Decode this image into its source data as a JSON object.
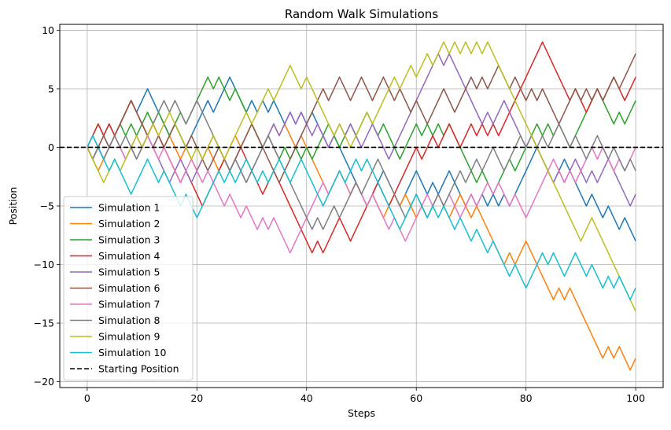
{
  "chart_data": {
    "type": "line",
    "title": "Random Walk Simulations",
    "xlabel": "Steps",
    "ylabel": "Position",
    "xlim": [
      -5,
      105
    ],
    "ylim": [
      -20.5,
      10.5
    ],
    "xticks": [
      0,
      20,
      40,
      60,
      80,
      100
    ],
    "yticks": [
      -20,
      -15,
      -10,
      -5,
      0,
      5,
      10
    ],
    "xtick_labels": [
      "0",
      "20",
      "40",
      "60",
      "80",
      "100"
    ],
    "ytick_labels": [
      "−20",
      "−15",
      "−10",
      "−5",
      "0",
      "5",
      "10"
    ],
    "grid": true,
    "legend_position": "lower-left",
    "reference_line": {
      "name": "Starting Position",
      "y": 0,
      "color": "#000000",
      "style": "dashed"
    },
    "series": [
      {
        "name": "Simulation 1",
        "color": "#1f77b4",
        "values": [
          0,
          1,
          0,
          -1,
          0,
          1,
          2,
          3,
          4,
          3,
          4,
          5,
          4,
          3,
          2,
          1,
          2,
          1,
          0,
          1,
          2,
          3,
          4,
          3,
          4,
          5,
          6,
          5,
          4,
          3,
          4,
          3,
          4,
          3,
          4,
          3,
          2,
          3,
          2,
          3,
          2,
          3,
          2,
          1,
          0,
          1,
          0,
          -1,
          -2,
          -3,
          -4,
          -5,
          -4,
          -3,
          -2,
          -3,
          -4,
          -5,
          -4,
          -3,
          -2,
          -3,
          -4,
          -3,
          -4,
          -3,
          -2,
          -3,
          -4,
          -5,
          -4,
          -5,
          -4,
          -5,
          -4,
          -5,
          -4,
          -5,
          -4,
          -3,
          -2,
          -1,
          0,
          -1,
          -2,
          -3,
          -2,
          -1,
          -2,
          -3,
          -4,
          -5,
          -4,
          -5,
          -6,
          -5,
          -6,
          -7,
          -6,
          -7,
          -8
        ]
      },
      {
        "name": "Simulation 2",
        "color": "#ff7f0e",
        "values": [
          0,
          -1,
          -2,
          -1,
          0,
          1,
          2,
          3,
          4,
          3,
          2,
          1,
          2,
          1,
          0,
          1,
          0,
          -1,
          0,
          -1,
          -2,
          -1,
          0,
          -1,
          -2,
          -1,
          0,
          1,
          0,
          1,
          2,
          1,
          0,
          1,
          2,
          1,
          2,
          1,
          0,
          1,
          0,
          -1,
          -2,
          -3,
          -4,
          -3,
          -2,
          -3,
          -4,
          -3,
          -4,
          -5,
          -4,
          -5,
          -6,
          -5,
          -4,
          -5,
          -4,
          -5,
          -6,
          -5,
          -6,
          -5,
          -4,
          -5,
          -6,
          -5,
          -4,
          -5,
          -6,
          -5,
          -6,
          -7,
          -8,
          -9,
          -10,
          -9,
          -10,
          -9,
          -8,
          -9,
          -10,
          -11,
          -12,
          -13,
          -12,
          -13,
          -12,
          -13,
          -14,
          -15,
          -16,
          -17,
          -18,
          -17,
          -18,
          -17,
          -18,
          -19,
          -18
        ]
      },
      {
        "name": "Simulation 3",
        "color": "#2ca02c",
        "values": [
          0,
          1,
          2,
          1,
          2,
          1,
          2,
          1,
          2,
          1,
          2,
          3,
          2,
          3,
          2,
          1,
          2,
          3,
          2,
          3,
          4,
          5,
          6,
          5,
          6,
          5,
          4,
          5,
          4,
          3,
          2,
          1,
          0,
          1,
          0,
          -1,
          0,
          -1,
          0,
          -1,
          0,
          -1,
          0,
          1,
          2,
          1,
          0,
          1,
          2,
          1,
          2,
          3,
          2,
          1,
          2,
          1,
          0,
          -1,
          0,
          1,
          2,
          1,
          2,
          1,
          2,
          1,
          2,
          1,
          0,
          -1,
          -2,
          -3,
          -2,
          -3,
          -4,
          -3,
          -2,
          -1,
          -2,
          -1,
          0,
          1,
          2,
          1,
          2,
          1,
          2,
          1,
          0,
          1,
          2,
          3,
          4,
          5,
          4,
          3,
          2,
          3,
          2,
          3,
          4
        ]
      },
      {
        "name": "Simulation 4",
        "color": "#d62728",
        "values": [
          0,
          1,
          2,
          1,
          2,
          1,
          2,
          3,
          4,
          3,
          2,
          1,
          2,
          1,
          0,
          -1,
          -2,
          -3,
          -2,
          -3,
          -4,
          -5,
          -4,
          -3,
          -2,
          -1,
          -2,
          -1,
          0,
          -1,
          -2,
          -3,
          -4,
          -3,
          -2,
          -3,
          -4,
          -5,
          -6,
          -7,
          -8,
          -9,
          -8,
          -9,
          -8,
          -7,
          -6,
          -7,
          -8,
          -7,
          -6,
          -5,
          -4,
          -3,
          -4,
          -5,
          -4,
          -3,
          -2,
          -1,
          0,
          -1,
          0,
          1,
          0,
          1,
          2,
          1,
          0,
          1,
          2,
          1,
          2,
          1,
          2,
          1,
          2,
          3,
          4,
          5,
          6,
          7,
          8,
          9,
          8,
          7,
          6,
          5,
          4,
          5,
          4,
          3,
          4,
          5,
          4,
          5,
          6,
          5,
          4,
          5,
          6
        ]
      },
      {
        "name": "Simulation 5",
        "color": "#9467bd",
        "values": [
          0,
          -1,
          0,
          1,
          0,
          1,
          0,
          -1,
          0,
          -1,
          0,
          1,
          0,
          -1,
          -2,
          -3,
          -2,
          -1,
          -2,
          -3,
          -2,
          -1,
          0,
          1,
          0,
          -1,
          -2,
          -1,
          -2,
          -3,
          -2,
          -1,
          0,
          1,
          2,
          1,
          2,
          3,
          2,
          3,
          2,
          1,
          2,
          1,
          0,
          1,
          2,
          1,
          2,
          1,
          0,
          1,
          2,
          1,
          0,
          -1,
          0,
          1,
          2,
          3,
          4,
          5,
          6,
          7,
          8,
          7,
          8,
          7,
          6,
          5,
          4,
          3,
          2,
          3,
          2,
          3,
          4,
          3,
          2,
          1,
          0,
          1,
          0,
          -1,
          -2,
          -3,
          -2,
          -3,
          -2,
          -1,
          -2,
          -3,
          -2,
          -3,
          -2,
          -1,
          -2,
          -3,
          -4,
          -5,
          -4
        ]
      },
      {
        "name": "Simulation 6",
        "color": "#8c564b",
        "values": [
          0,
          -1,
          0,
          1,
          0,
          1,
          2,
          3,
          4,
          3,
          2,
          1,
          0,
          1,
          0,
          1,
          2,
          1,
          0,
          1,
          0,
          -1,
          -2,
          -1,
          0,
          -1,
          -2,
          -1,
          0,
          1,
          2,
          1,
          0,
          -1,
          -2,
          -3,
          -2,
          -1,
          0,
          1,
          2,
          3,
          4,
          5,
          4,
          5,
          6,
          5,
          4,
          5,
          6,
          5,
          4,
          5,
          6,
          5,
          4,
          5,
          4,
          3,
          4,
          3,
          2,
          3,
          4,
          5,
          4,
          3,
          4,
          5,
          6,
          5,
          6,
          5,
          6,
          7,
          6,
          5,
          6,
          5,
          4,
          5,
          4,
          5,
          4,
          3,
          2,
          3,
          4,
          5,
          4,
          5,
          4,
          5,
          4,
          5,
          6,
          5,
          6,
          7,
          8
        ]
      },
      {
        "name": "Simulation 7",
        "color": "#e377c2",
        "values": [
          0,
          1,
          0,
          -1,
          0,
          1,
          0,
          -1,
          0,
          1,
          0,
          1,
          0,
          -1,
          0,
          -1,
          -2,
          -3,
          -2,
          -1,
          -2,
          -3,
          -2,
          -3,
          -4,
          -5,
          -4,
          -5,
          -6,
          -5,
          -6,
          -7,
          -6,
          -7,
          -6,
          -7,
          -8,
          -9,
          -8,
          -7,
          -6,
          -5,
          -4,
          -3,
          -4,
          -3,
          -2,
          -3,
          -4,
          -3,
          -4,
          -5,
          -4,
          -5,
          -6,
          -7,
          -6,
          -7,
          -8,
          -7,
          -6,
          -5,
          -4,
          -5,
          -4,
          -5,
          -4,
          -5,
          -6,
          -5,
          -4,
          -5,
          -4,
          -3,
          -4,
          -3,
          -4,
          -5,
          -4,
          -5,
          -6,
          -5,
          -4,
          -3,
          -2,
          -1,
          -2,
          -3,
          -2,
          -3,
          -2,
          -1,
          0,
          -1,
          0,
          -1,
          -2,
          -1,
          -2,
          -1,
          0
        ]
      },
      {
        "name": "Simulation 8",
        "color": "#7f7f7f",
        "values": [
          0,
          -1,
          0,
          -1,
          0,
          1,
          0,
          1,
          0,
          -1,
          0,
          1,
          2,
          3,
          4,
          3,
          4,
          3,
          2,
          3,
          4,
          3,
          2,
          1,
          0,
          -1,
          -2,
          -1,
          -2,
          -3,
          -2,
          -1,
          0,
          1,
          0,
          -1,
          -2,
          -3,
          -4,
          -5,
          -6,
          -7,
          -6,
          -7,
          -6,
          -5,
          -6,
          -5,
          -4,
          -3,
          -4,
          -3,
          -2,
          -1,
          -2,
          -3,
          -4,
          -5,
          -6,
          -5,
          -4,
          -5,
          -6,
          -5,
          -4,
          -5,
          -4,
          -3,
          -2,
          -3,
          -2,
          -1,
          -2,
          -1,
          0,
          -1,
          -2,
          -1,
          0,
          1,
          0,
          1,
          0,
          1,
          0,
          1,
          2,
          1,
          0,
          1,
          0,
          -1,
          0,
          1,
          0,
          -1,
          0,
          -1,
          -2,
          -1,
          -2
        ]
      },
      {
        "name": "Simulation 9",
        "color": "#bcbd22",
        "values": [
          0,
          -1,
          -2,
          -3,
          -2,
          -1,
          -2,
          -1,
          0,
          1,
          0,
          1,
          2,
          1,
          2,
          3,
          2,
          1,
          0,
          -1,
          0,
          -1,
          0,
          1,
          0,
          -1,
          0,
          1,
          2,
          3,
          2,
          3,
          4,
          5,
          4,
          5,
          6,
          7,
          6,
          5,
          6,
          5,
          4,
          3,
          2,
          1,
          2,
          1,
          0,
          1,
          2,
          3,
          2,
          3,
          4,
          5,
          6,
          5,
          6,
          7,
          6,
          7,
          8,
          7,
          8,
          9,
          8,
          9,
          8,
          9,
          8,
          9,
          8,
          9,
          8,
          7,
          6,
          5,
          4,
          3,
          2,
          1,
          0,
          -1,
          -2,
          -3,
          -4,
          -5,
          -6,
          -7,
          -8,
          -7,
          -6,
          -7,
          -8,
          -9,
          -10,
          -11,
          -12,
          -13,
          -14
        ]
      },
      {
        "name": "Simulation 10",
        "color": "#17becf",
        "values": [
          0,
          1,
          0,
          -1,
          -2,
          -1,
          -2,
          -3,
          -4,
          -3,
          -2,
          -1,
          -2,
          -3,
          -2,
          -3,
          -4,
          -5,
          -4,
          -5,
          -6,
          -5,
          -4,
          -3,
          -2,
          -3,
          -2,
          -3,
          -2,
          -1,
          -2,
          -3,
          -2,
          -3,
          -2,
          -1,
          -2,
          -3,
          -2,
          -1,
          -2,
          -3,
          -4,
          -5,
          -4,
          -3,
          -2,
          -3,
          -2,
          -1,
          -2,
          -1,
          -2,
          -3,
          -4,
          -5,
          -6,
          -7,
          -6,
          -5,
          -4,
          -5,
          -6,
          -5,
          -6,
          -5,
          -6,
          -7,
          -6,
          -7,
          -8,
          -7,
          -8,
          -9,
          -8,
          -9,
          -10,
          -11,
          -10,
          -11,
          -12,
          -11,
          -10,
          -9,
          -10,
          -9,
          -10,
          -11,
          -10,
          -9,
          -10,
          -11,
          -10,
          -11,
          -12,
          -11,
          -12,
          -11,
          -12,
          -13,
          -12
        ]
      }
    ]
  }
}
